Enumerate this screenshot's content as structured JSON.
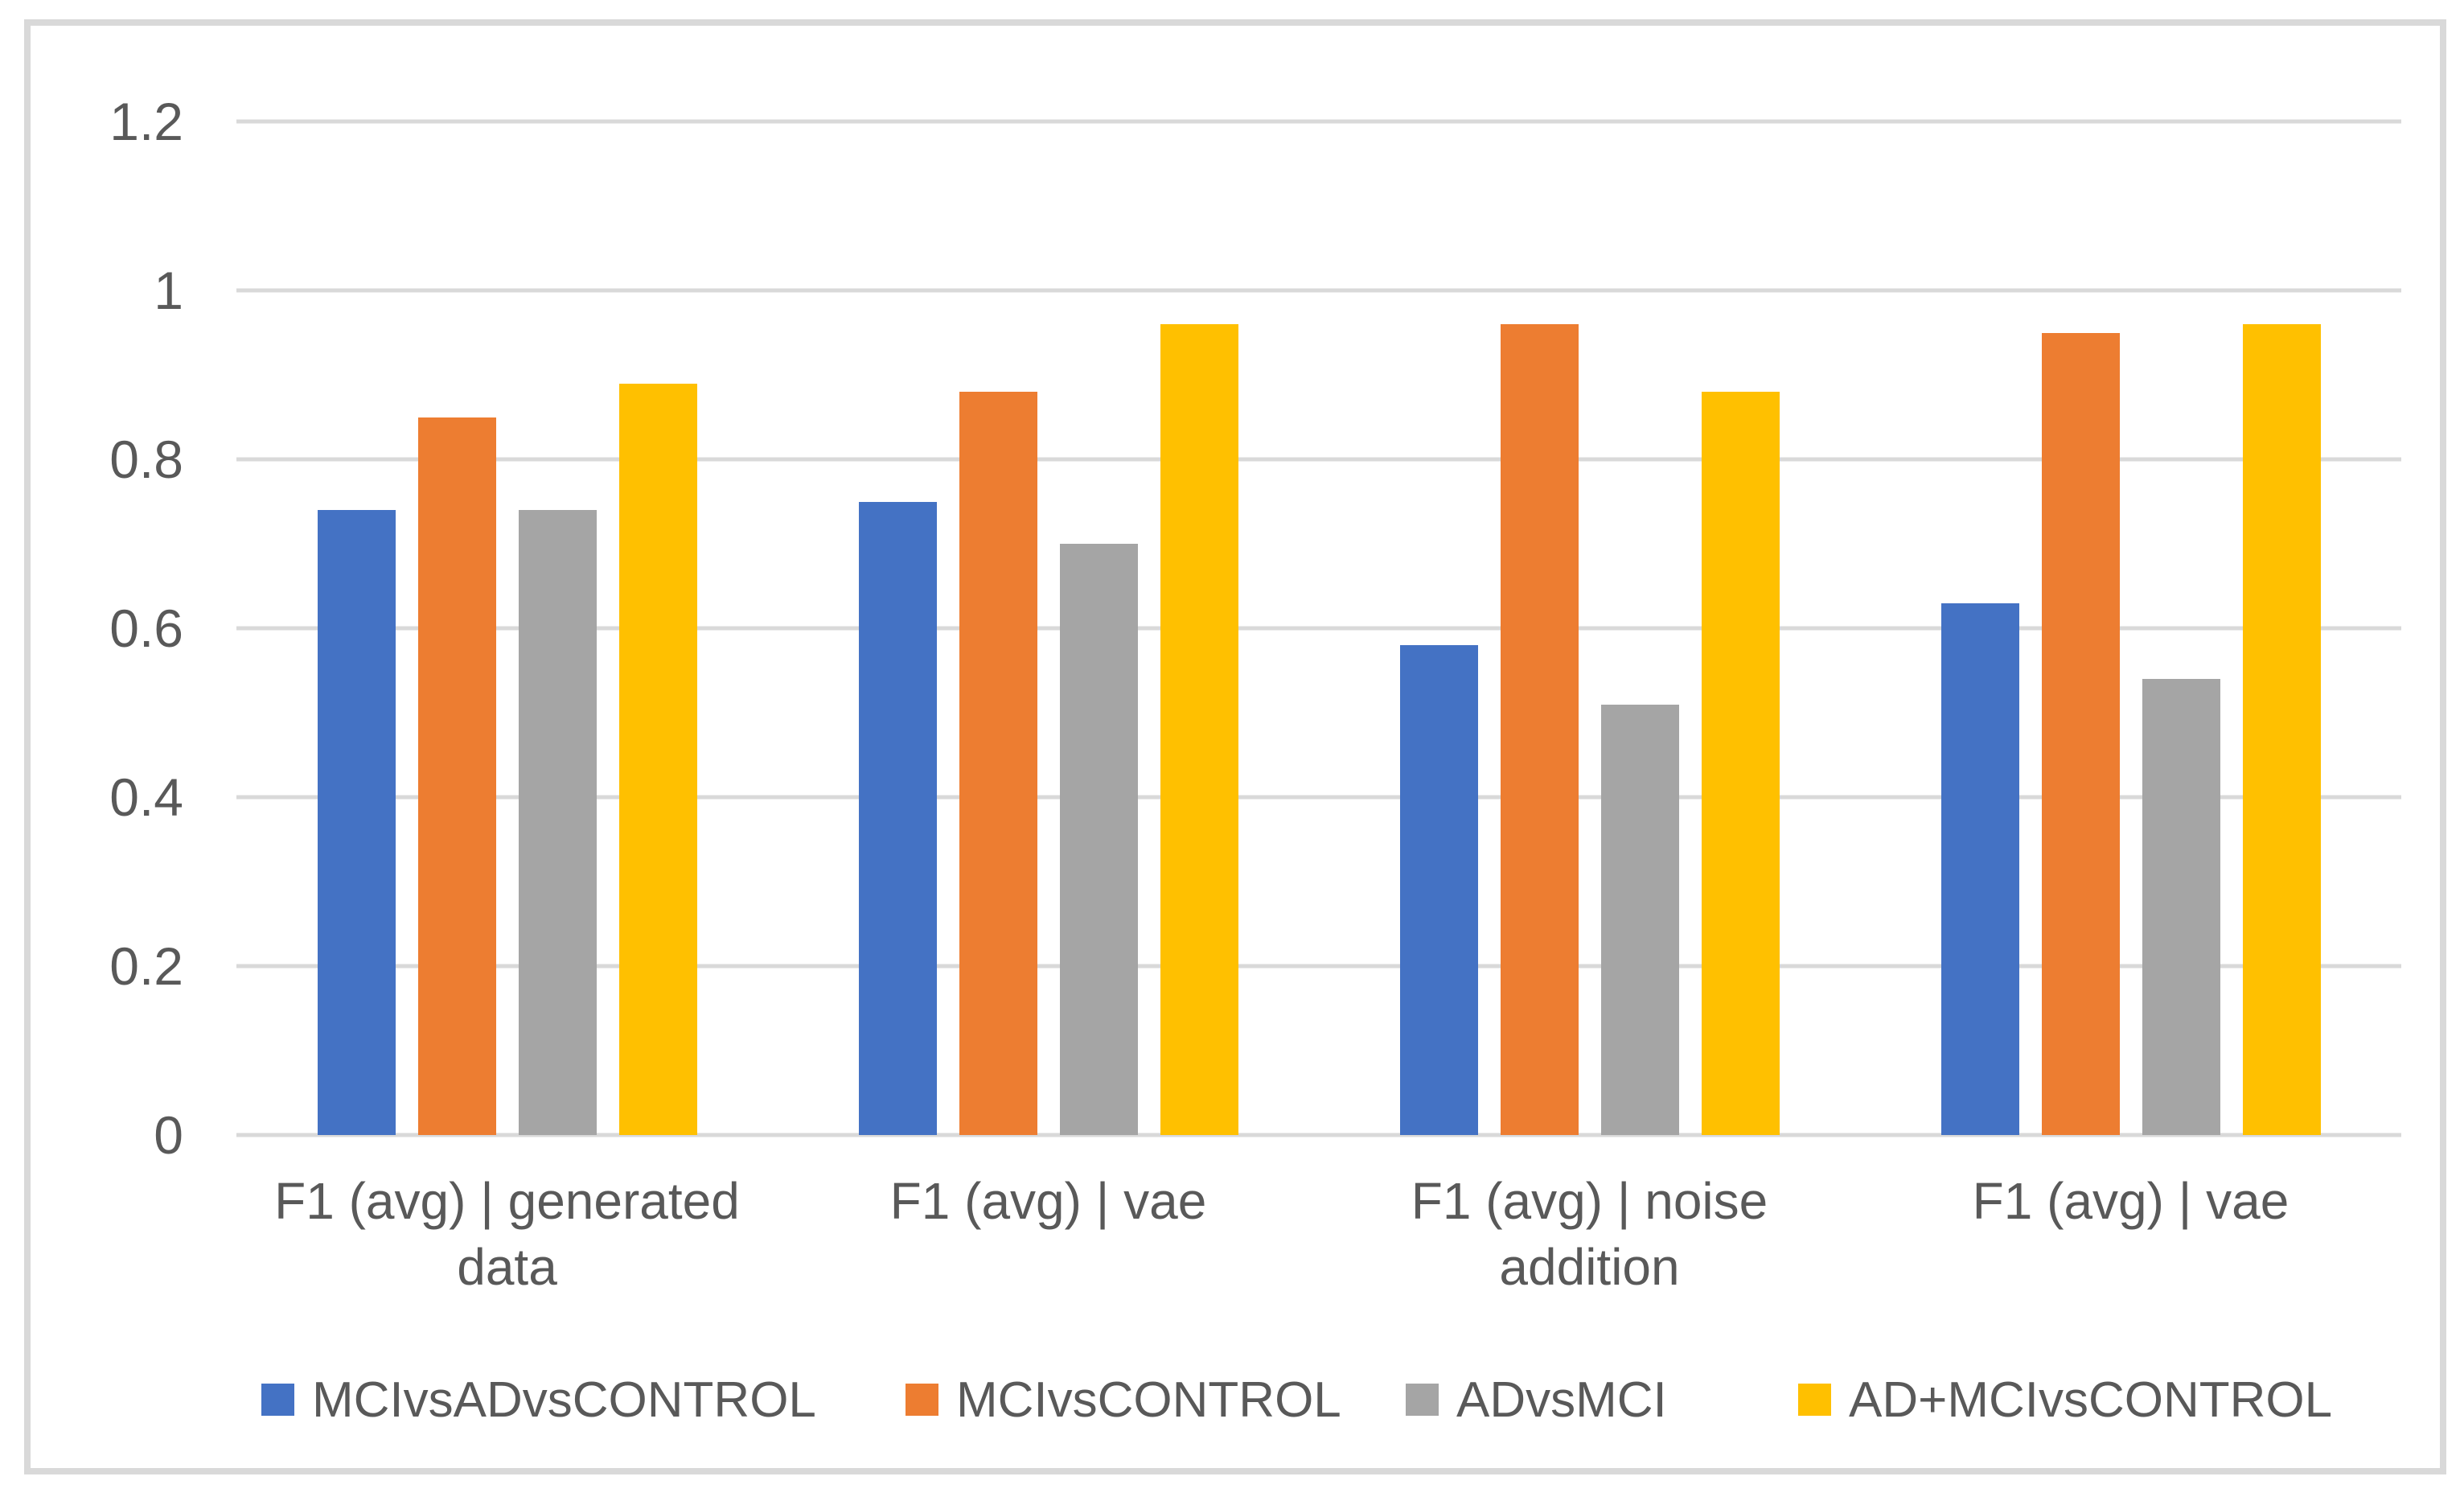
{
  "chart_data": {
    "type": "bar",
    "title": "",
    "xlabel": "",
    "ylabel": "",
    "categories": [
      "F1 (avg) | generated data",
      "F1 (avg) | vae",
      "F1 (avg) | noise addition",
      "F1 (avg) | vae"
    ],
    "categories_lines": [
      [
        "F1 (avg) | generated",
        "data"
      ],
      [
        "F1 (avg) | vae"
      ],
      [
        "F1 (avg) | noise",
        "addition"
      ],
      [
        "F1 (avg) | vae"
      ]
    ],
    "series": [
      {
        "name": "MCIvsADvsCONTROL",
        "color": "#4472C4",
        "values": [
          0.74,
          0.75,
          0.58,
          0.63
        ]
      },
      {
        "name": "MCIvsCONTROL",
        "color": "#ED7D31",
        "values": [
          0.85,
          0.88,
          0.96,
          0.95
        ]
      },
      {
        "name": "ADvsMCI",
        "color": "#A5A5A5",
        "values": [
          0.74,
          0.7,
          0.51,
          0.54
        ]
      },
      {
        "name": "AD+MCIvsCONTROL",
        "color": "#FFC000",
        "values": [
          0.89,
          0.96,
          0.88,
          0.96
        ]
      }
    ],
    "y_axis": {
      "min": 0,
      "max": 1.2,
      "step": 0.2,
      "tick_labels": [
        "1.2",
        "1",
        "0.8",
        "0.6",
        "0.4",
        "0.2",
        "0"
      ]
    },
    "grid": true,
    "legend_position": "bottom",
    "gridline_color": "#D9D9D9",
    "frame_border_color": "#D9D9D9",
    "text_color": "#595959",
    "background_color": "#FFFFFF"
  }
}
